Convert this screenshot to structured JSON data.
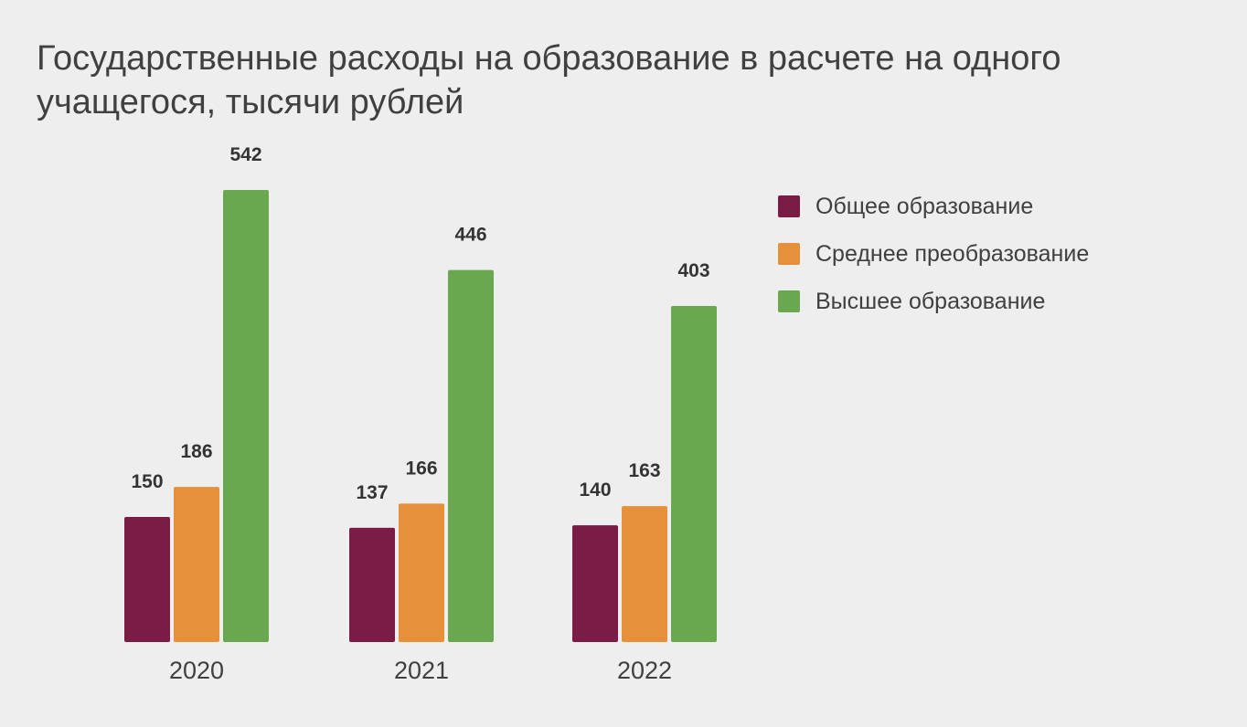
{
  "chart_data": {
    "type": "bar",
    "title": "Государственные расходы на образование в расчете на одного учащегося, тысячи рублей",
    "categories": [
      "2020",
      "2021",
      "2022"
    ],
    "series": [
      {
        "name": "Общее образование",
        "color": "#7b1c47",
        "values": [
          150,
          137,
          140
        ]
      },
      {
        "name": "Среднее преобразование",
        "color": "#e6913a",
        "values": [
          186,
          166,
          163
        ]
      },
      {
        "name": "Высшее образование",
        "color": "#69a84f",
        "values": [
          542,
          446,
          403
        ]
      }
    ],
    "xlabel": "",
    "ylabel": "",
    "ylim": [
      0,
      542
    ],
    "grid": false,
    "y_axis_visible": false,
    "data_labels": true,
    "legend_position": "right"
  }
}
